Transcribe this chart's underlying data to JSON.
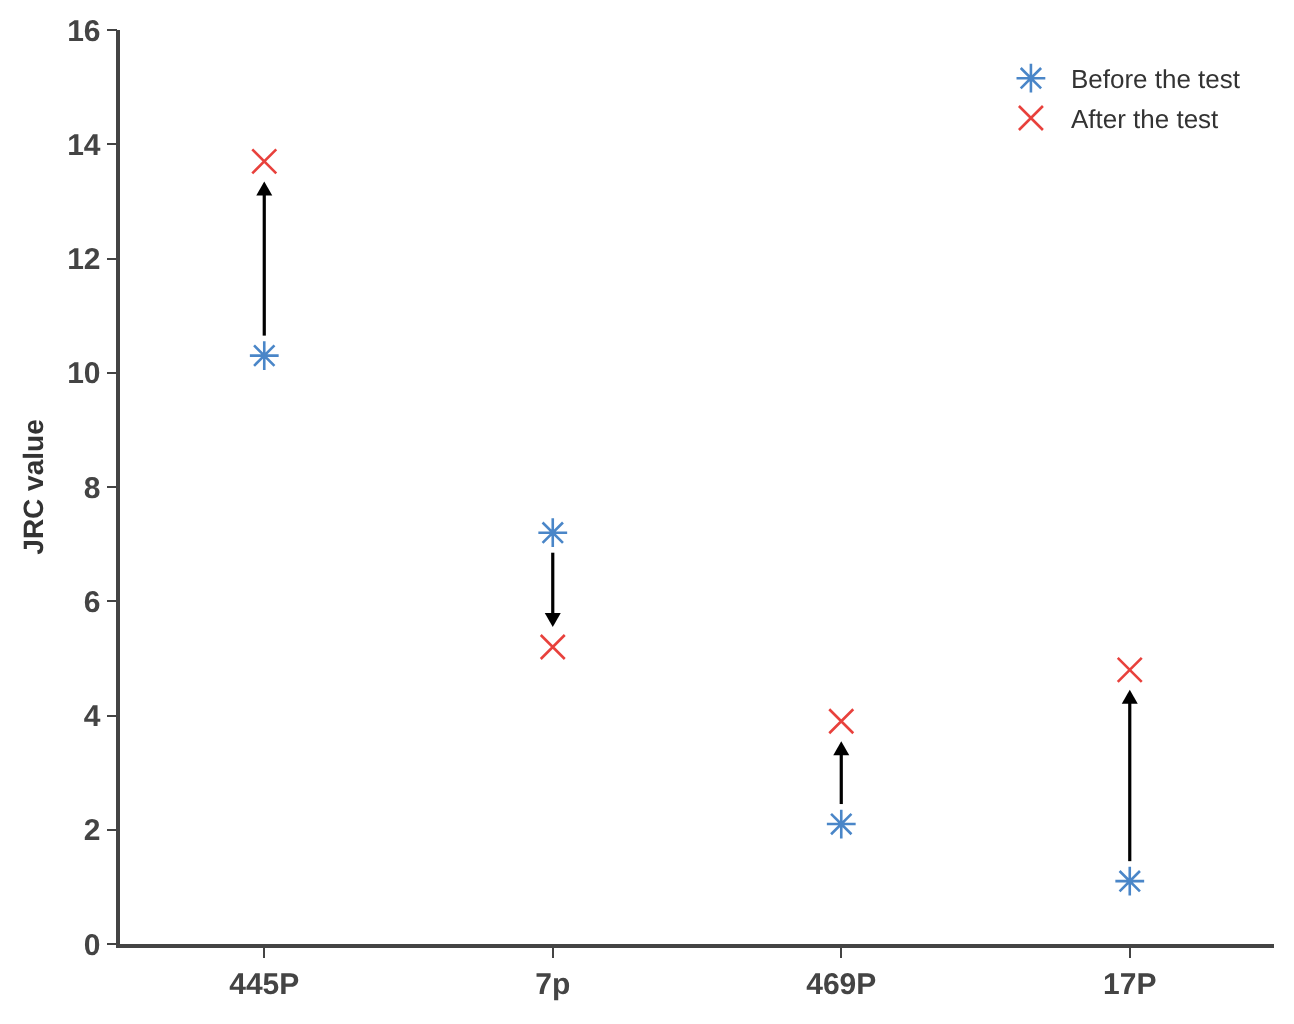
{
  "chart_data": {
    "type": "scatter",
    "ylabel": "JRC value",
    "categories": [
      "445P",
      "7p",
      "469P",
      "17P"
    ],
    "series": [
      {
        "name": "Before the test",
        "color": "#4a86c8",
        "marker": "cross",
        "values": [
          10.3,
          7.2,
          2.1,
          1.1
        ]
      },
      {
        "name": "After the test",
        "color": "#e8413c",
        "marker": "cross",
        "values": [
          13.7,
          5.2,
          3.9,
          4.8
        ]
      }
    ],
    "ylim": [
      0,
      16
    ],
    "yticks": [
      0,
      2,
      4,
      6,
      8,
      10,
      12,
      14,
      16
    ],
    "grid": false,
    "legend": "top right"
  }
}
